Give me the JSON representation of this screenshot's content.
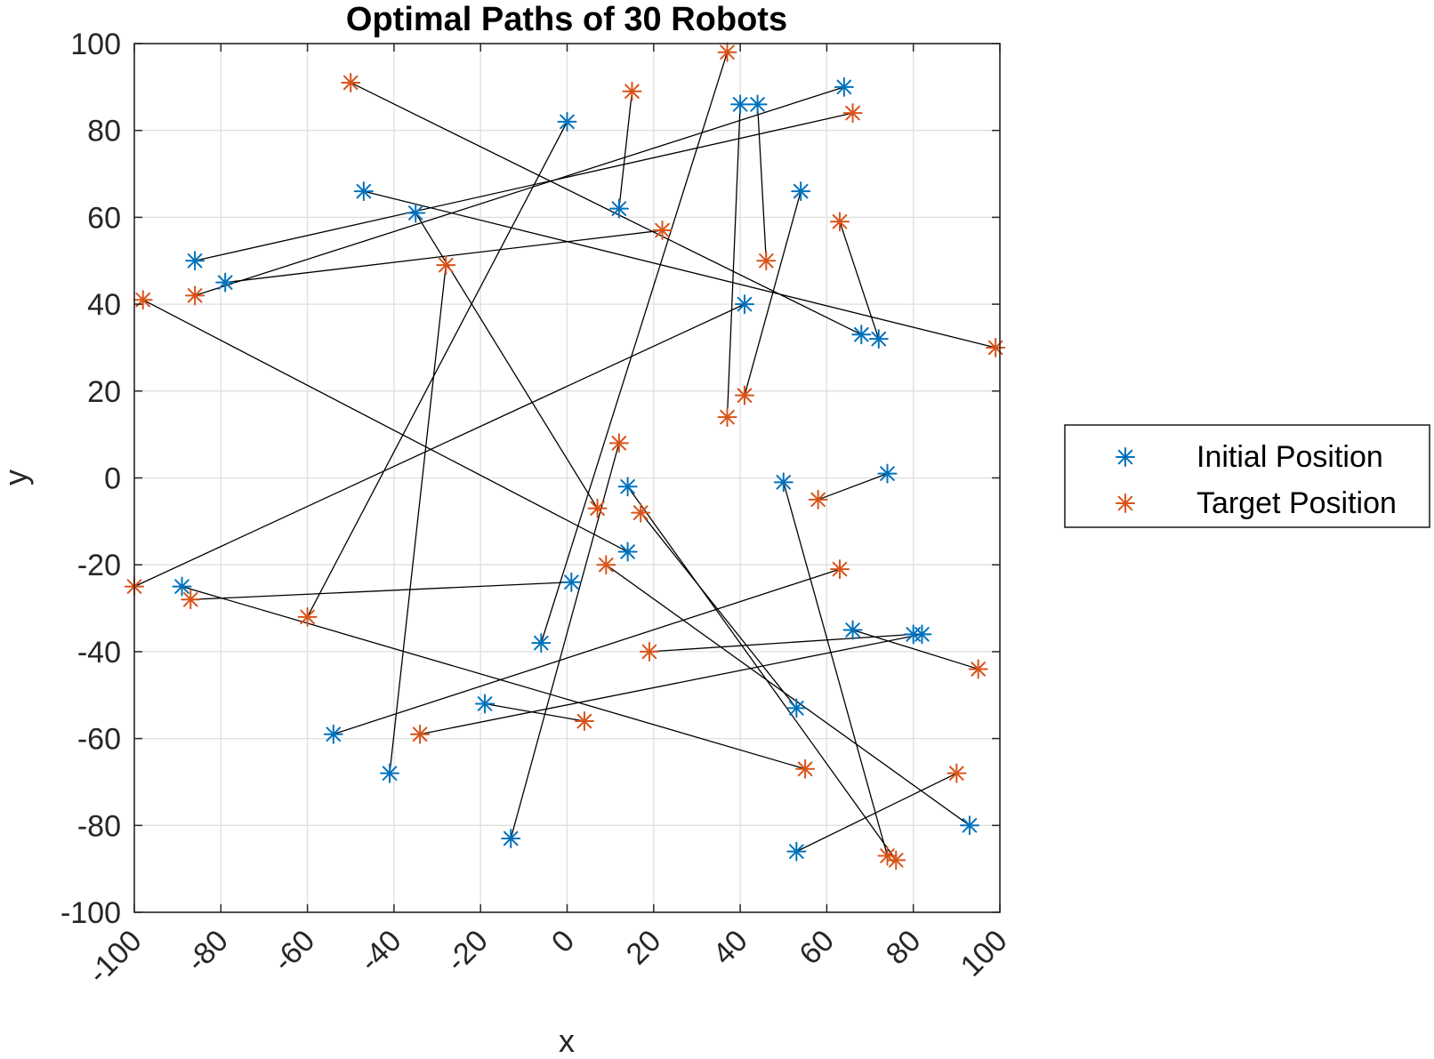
{
  "chart_data": {
    "type": "scatter",
    "title": "Optimal Paths of 30 Robots",
    "xlabel": "x",
    "ylabel": "y",
    "xlim": [
      -100,
      100
    ],
    "ylim": [
      -100,
      100
    ],
    "xticks": [
      -100,
      -80,
      -60,
      -40,
      -20,
      0,
      20,
      40,
      60,
      80,
      100
    ],
    "yticks": [
      -100,
      -80,
      -60,
      -40,
      -20,
      0,
      20,
      40,
      60,
      80,
      100
    ],
    "grid": true,
    "legend_position": "right",
    "series": [
      {
        "name": "Initial Position",
        "color": "#0072BD",
        "marker": "asterisk"
      },
      {
        "name": "Target Position",
        "color": "#D95319",
        "marker": "asterisk"
      }
    ],
    "paths_color": "#000000",
    "paths": [
      {
        "initial": [
          -86,
          50
        ],
        "target": [
          66,
          84
        ]
      },
      {
        "initial": [
          -79,
          45
        ],
        "target": [
          22,
          57
        ]
      },
      {
        "initial": [
          -47,
          66
        ],
        "target": [
          99,
          30
        ]
      },
      {
        "initial": [
          -35,
          61
        ],
        "target": [
          7,
          -7
        ]
      },
      {
        "initial": [
          0,
          82
        ],
        "target": [
          -60,
          -32
        ]
      },
      {
        "initial": [
          12,
          62
        ],
        "target": [
          15,
          89
        ]
      },
      {
        "initial": [
          40,
          86
        ],
        "target": [
          37,
          14
        ]
      },
      {
        "initial": [
          44,
          86
        ],
        "target": [
          46,
          50
        ]
      },
      {
        "initial": [
          64,
          90
        ],
        "target": [
          -86,
          42
        ]
      },
      {
        "initial": [
          54,
          66
        ],
        "target": [
          41,
          19
        ]
      },
      {
        "initial": [
          68,
          33
        ],
        "target": [
          -50,
          91
        ]
      },
      {
        "initial": [
          72,
          32
        ],
        "target": [
          63,
          59
        ]
      },
      {
        "initial": [
          41,
          40
        ],
        "target": [
          -100,
          -25
        ]
      },
      {
        "initial": [
          74,
          1
        ],
        "target": [
          58,
          -5
        ]
      },
      {
        "initial": [
          50,
          -1
        ],
        "target": [
          74,
          -87
        ]
      },
      {
        "initial": [
          14,
          -2
        ],
        "target": [
          76,
          -88
        ]
      },
      {
        "initial": [
          14,
          -17
        ],
        "target": [
          -98,
          41
        ]
      },
      {
        "initial": [
          1,
          -24
        ],
        "target": [
          -87,
          -28
        ]
      },
      {
        "initial": [
          -6,
          -38
        ],
        "target": [
          37,
          98
        ]
      },
      {
        "initial": [
          -19,
          -52
        ],
        "target": [
          4,
          -56
        ]
      },
      {
        "initial": [
          -13,
          -83
        ],
        "target": [
          12,
          8
        ]
      },
      {
        "initial": [
          -54,
          -59
        ],
        "target": [
          63,
          -21
        ]
      },
      {
        "initial": [
          -41,
          -68
        ],
        "target": [
          -28,
          49
        ]
      },
      {
        "initial": [
          -89,
          -25
        ],
        "target": [
          55,
          -67
        ]
      },
      {
        "initial": [
          53,
          -53
        ],
        "target": [
          17,
          -8
        ]
      },
      {
        "initial": [
          66,
          -35
        ],
        "target": [
          95,
          -44
        ]
      },
      {
        "initial": [
          80,
          -36
        ],
        "target": [
          19,
          -40
        ]
      },
      {
        "initial": [
          82,
          -36
        ],
        "target": [
          -34,
          -59
        ]
      },
      {
        "initial": [
          93,
          -80
        ],
        "target": [
          9,
          -20
        ]
      },
      {
        "initial": [
          53,
          -86
        ],
        "target": [
          90,
          -68
        ]
      }
    ]
  }
}
